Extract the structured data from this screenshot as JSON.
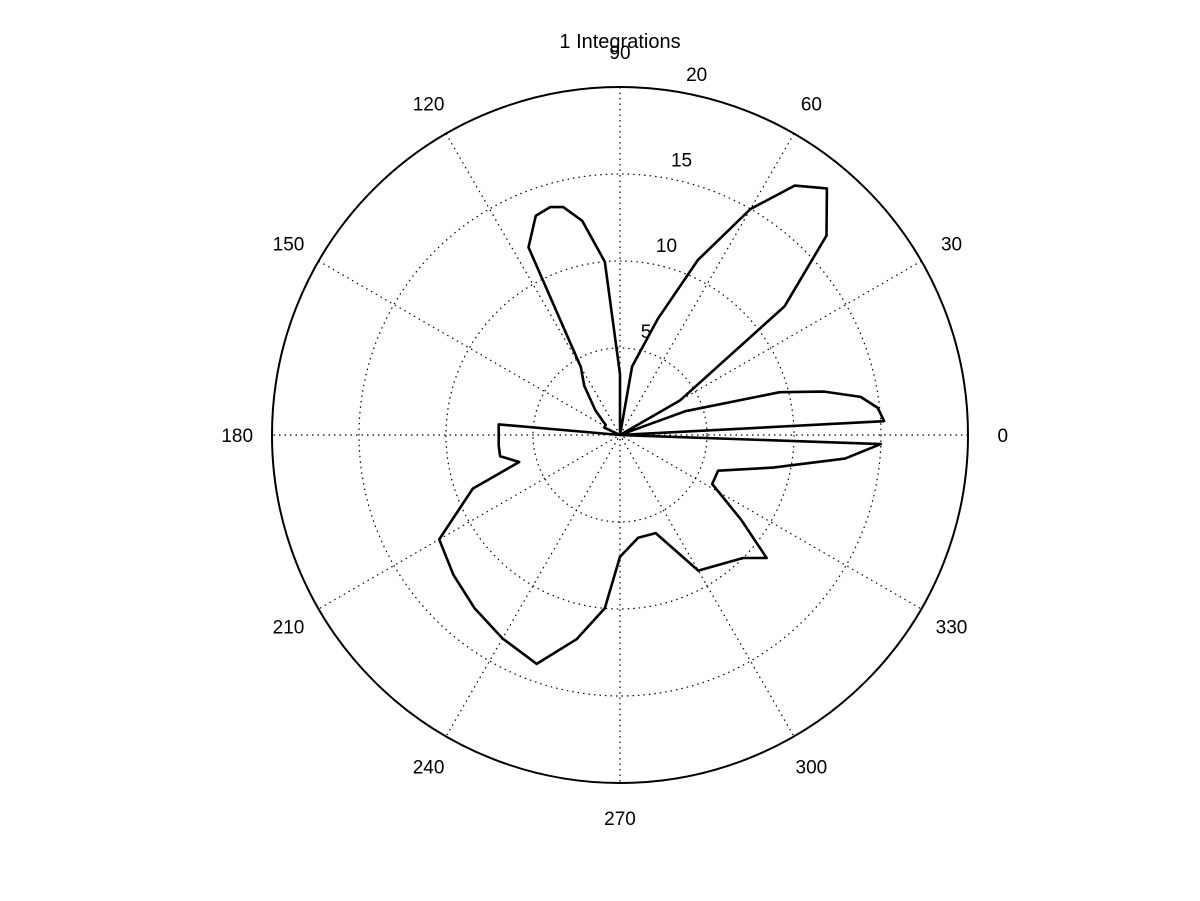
{
  "chart_data": {
    "type": "polar-line",
    "title": "1 Integrations",
    "r_max": 20,
    "radial_ticks": [
      5,
      10,
      15,
      20
    ],
    "angular_ticks": [
      0,
      30,
      60,
      90,
      120,
      150,
      180,
      210,
      240,
      270,
      300,
      330
    ],
    "angle_units": "degrees",
    "grid": true,
    "series": [
      {
        "color": "#000000",
        "points": [
          [
            0,
            0
          ],
          [
            3,
            15.2
          ],
          [
            6,
            14.9
          ],
          [
            9,
            14.0
          ],
          [
            12,
            12.0
          ],
          [
            15,
            9.5
          ],
          [
            20,
            4.0
          ],
          [
            25,
            0
          ],
          [
            30,
            4.0
          ],
          [
            38,
            12.0
          ],
          [
            44,
            16.5
          ],
          [
            50,
            18.5
          ],
          [
            55,
            17.5
          ],
          [
            60,
            15.0
          ],
          [
            66,
            11.0
          ],
          [
            72,
            7.0
          ],
          [
            80,
            4.0
          ],
          [
            84,
            0
          ],
          [
            90,
            3.5
          ],
          [
            95,
            10.0
          ],
          [
            100,
            12.5
          ],
          [
            104,
            13.5
          ],
          [
            107,
            13.7
          ],
          [
            111,
            13.5
          ],
          [
            116,
            12.0
          ],
          [
            120,
            4.5
          ],
          [
            126,
            3.5
          ],
          [
            135,
            2.0
          ],
          [
            145,
            1.0
          ],
          [
            155,
            1.0
          ],
          [
            165,
            0
          ],
          [
            175,
            7.0
          ],
          [
            185,
            7.0
          ],
          [
            190,
            7.0
          ],
          [
            195,
            6.0
          ],
          [
            200,
            9.0
          ],
          [
            210,
            12.0
          ],
          [
            220,
            12.5
          ],
          [
            230,
            13.0
          ],
          [
            240,
            13.5
          ],
          [
            250,
            14.0
          ],
          [
            258,
            12.0
          ],
          [
            265,
            10.0
          ],
          [
            270,
            7.0
          ],
          [
            280,
            6.0
          ],
          [
            290,
            6.0
          ],
          [
            300,
            9.0
          ],
          [
            315,
            10.0
          ],
          [
            320,
            11.0
          ],
          [
            325,
            8.5
          ],
          [
            332,
            6.0
          ],
          [
            340,
            6.0
          ],
          [
            348,
            9.0
          ],
          [
            354,
            13.0
          ],
          [
            358,
            15.0
          ],
          [
            360,
            0
          ]
        ]
      }
    ]
  }
}
